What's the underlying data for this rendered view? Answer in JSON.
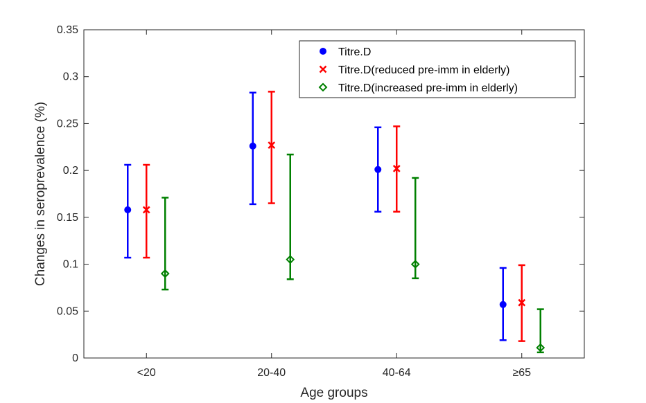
{
  "chart_data": {
    "type": "scatter",
    "title": "",
    "xlabel": "Age groups",
    "ylabel": "Changes in seroprevalence (%)",
    "categories": [
      "<20",
      "20-40",
      "40-64",
      "≥65"
    ],
    "ylim": [
      0,
      0.35
    ],
    "yticks": [
      "0",
      "0.05",
      "0.1",
      "0.15",
      "0.2",
      "0.25",
      "0.3",
      "0.35"
    ],
    "grid": false,
    "legend_position": "top-right",
    "series": [
      {
        "name": "Titre.D",
        "color": "#0000ff",
        "marker": "circle",
        "values": [
          0.158,
          0.226,
          0.201,
          0.057
        ],
        "lower": [
          0.107,
          0.164,
          0.156,
          0.019
        ],
        "upper": [
          0.206,
          0.283,
          0.246,
          0.096
        ]
      },
      {
        "name": "Titre.D(reduced pre-imm in elderly)",
        "color": "#ff0000",
        "marker": "x",
        "values": [
          0.158,
          0.227,
          0.202,
          0.059
        ],
        "lower": [
          0.107,
          0.165,
          0.156,
          0.018
        ],
        "upper": [
          0.206,
          0.284,
          0.247,
          0.099
        ]
      },
      {
        "name": "Titre.D(increased pre-imm in elderly)",
        "color": "#008000",
        "marker": "diamond",
        "values": [
          0.09,
          0.105,
          0.1,
          0.011
        ],
        "lower": [
          0.073,
          0.084,
          0.085,
          0.006
        ],
        "upper": [
          0.171,
          0.217,
          0.192,
          0.052
        ]
      }
    ]
  }
}
